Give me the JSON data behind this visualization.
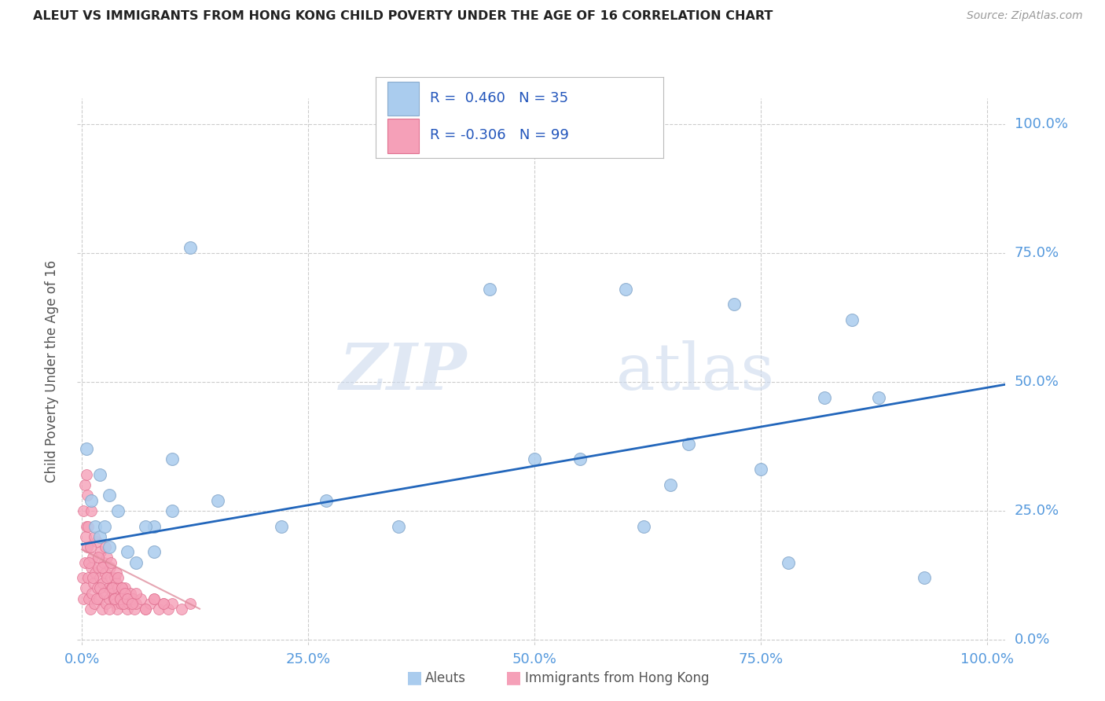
{
  "title": "ALEUT VS IMMIGRANTS FROM HONG KONG CHILD POVERTY UNDER THE AGE OF 16 CORRELATION CHART",
  "source": "Source: ZipAtlas.com",
  "tick_color": "#5599dd",
  "ylabel": "Child Poverty Under the Age of 16",
  "x_tick_vals": [
    0,
    0.25,
    0.5,
    0.75,
    1.0
  ],
  "y_tick_vals": [
    0,
    0.25,
    0.5,
    0.75,
    1.0
  ],
  "aleut_R": 0.46,
  "aleut_N": 35,
  "hk_R": -0.306,
  "hk_N": 99,
  "aleut_color": "#aaccee",
  "aleut_edge_color": "#88aacc",
  "hk_color": "#f5a0b8",
  "hk_edge_color": "#e07090",
  "trend_aleut_color": "#2266bb",
  "trend_hk_color": "#dd8899",
  "watermark_zip": "ZIP",
  "watermark_atlas": "atlas",
  "background_color": "#ffffff",
  "aleut_scatter_x": [
    0.005,
    0.01,
    0.015,
    0.02,
    0.025,
    0.03,
    0.04,
    0.05,
    0.06,
    0.08,
    0.1,
    0.12,
    0.15,
    0.22,
    0.27,
    0.35,
    0.45,
    0.5,
    0.55,
    0.6,
    0.62,
    0.65,
    0.67,
    0.72,
    0.75,
    0.78,
    0.82,
    0.85,
    0.88,
    0.93,
    0.03,
    0.07,
    0.1,
    0.02,
    0.08
  ],
  "aleut_scatter_y": [
    0.37,
    0.27,
    0.22,
    0.2,
    0.22,
    0.18,
    0.25,
    0.17,
    0.15,
    0.22,
    0.25,
    0.76,
    0.27,
    0.22,
    0.27,
    0.22,
    0.68,
    0.35,
    0.35,
    0.68,
    0.22,
    0.3,
    0.38,
    0.65,
    0.33,
    0.15,
    0.47,
    0.62,
    0.47,
    0.12,
    0.28,
    0.22,
    0.35,
    0.32,
    0.17
  ],
  "aleut_trend_x": [
    0.0,
    1.02
  ],
  "aleut_trend_y": [
    0.185,
    0.495
  ],
  "hk_scatter_x": [
    0.001,
    0.002,
    0.003,
    0.004,
    0.005,
    0.006,
    0.007,
    0.008,
    0.009,
    0.01,
    0.011,
    0.012,
    0.013,
    0.014,
    0.015,
    0.016,
    0.017,
    0.018,
    0.019,
    0.02,
    0.021,
    0.022,
    0.023,
    0.024,
    0.025,
    0.026,
    0.027,
    0.028,
    0.029,
    0.03,
    0.031,
    0.032,
    0.033,
    0.034,
    0.035,
    0.036,
    0.037,
    0.038,
    0.039,
    0.04,
    0.041,
    0.042,
    0.043,
    0.044,
    0.045,
    0.046,
    0.047,
    0.048,
    0.049,
    0.05,
    0.052,
    0.054,
    0.056,
    0.058,
    0.06,
    0.065,
    0.07,
    0.075,
    0.08,
    0.085,
    0.09,
    0.095,
    0.1,
    0.11,
    0.12,
    0.002,
    0.003,
    0.004,
    0.005,
    0.006,
    0.007,
    0.008,
    0.009,
    0.01,
    0.012,
    0.014,
    0.016,
    0.018,
    0.02,
    0.022,
    0.024,
    0.026,
    0.028,
    0.03,
    0.032,
    0.034,
    0.036,
    0.038,
    0.04,
    0.042,
    0.044,
    0.046,
    0.048,
    0.05,
    0.055,
    0.06,
    0.07,
    0.08,
    0.09
  ],
  "hk_scatter_y": [
    0.12,
    0.08,
    0.15,
    0.1,
    0.22,
    0.18,
    0.12,
    0.08,
    0.06,
    0.14,
    0.09,
    0.16,
    0.11,
    0.07,
    0.13,
    0.19,
    0.1,
    0.14,
    0.08,
    0.12,
    0.17,
    0.06,
    0.11,
    0.15,
    0.09,
    0.13,
    0.07,
    0.16,
    0.1,
    0.08,
    0.14,
    0.12,
    0.1,
    0.09,
    0.08,
    0.12,
    0.07,
    0.11,
    0.06,
    0.1,
    0.09,
    0.08,
    0.07,
    0.1,
    0.08,
    0.09,
    0.07,
    0.1,
    0.08,
    0.06,
    0.07,
    0.09,
    0.08,
    0.06,
    0.07,
    0.08,
    0.06,
    0.07,
    0.08,
    0.06,
    0.07,
    0.06,
    0.07,
    0.06,
    0.07,
    0.25,
    0.3,
    0.2,
    0.32,
    0.28,
    0.22,
    0.15,
    0.18,
    0.25,
    0.12,
    0.2,
    0.08,
    0.16,
    0.1,
    0.14,
    0.09,
    0.18,
    0.12,
    0.06,
    0.15,
    0.1,
    0.08,
    0.13,
    0.12,
    0.08,
    0.1,
    0.07,
    0.09,
    0.08,
    0.07,
    0.09,
    0.06,
    0.08,
    0.07
  ],
  "hk_trend_x": [
    0.0,
    0.13
  ],
  "hk_trend_y": [
    0.175,
    0.06
  ]
}
